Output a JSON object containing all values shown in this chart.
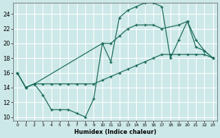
{
  "xlabel": "Humidex (Indice chaleur)",
  "bg_color": "#cde8e8",
  "grid_color": "#ffffff",
  "line_color": "#1a6b5a",
  "xlim": [
    -0.5,
    23.5
  ],
  "ylim": [
    9.5,
    25.5
  ],
  "xticks": [
    0,
    1,
    2,
    3,
    4,
    5,
    6,
    7,
    8,
    9,
    10,
    11,
    12,
    13,
    14,
    15,
    16,
    17,
    18,
    19,
    20,
    21,
    22,
    23
  ],
  "yticks": [
    10,
    12,
    14,
    16,
    18,
    20,
    22,
    24
  ],
  "line1_x": [
    0,
    1,
    2,
    3,
    4,
    5,
    6,
    7,
    8,
    9,
    10,
    11,
    12,
    13,
    14,
    15,
    16,
    17,
    18,
    19,
    20,
    21,
    22,
    23
  ],
  "line1_y": [
    16.0,
    14.0,
    14.5,
    13.0,
    11.0,
    11.0,
    11.0,
    10.5,
    10.0,
    12.5,
    20.0,
    17.5,
    23.5,
    24.5,
    25.0,
    25.5,
    25.5,
    25.0,
    18.0,
    20.5,
    23.0,
    19.5,
    19.0,
    18.0
  ],
  "line2_x": [
    0,
    1,
    2,
    10,
    11,
    12,
    13,
    14,
    15,
    16,
    17,
    19,
    20,
    21,
    22,
    23
  ],
  "line2_y": [
    16.0,
    14.0,
    14.5,
    20.0,
    20.0,
    21.0,
    22.0,
    22.5,
    22.5,
    22.5,
    22.0,
    22.5,
    23.0,
    20.5,
    19.0,
    18.0
  ],
  "line3_x": [
    0,
    1,
    2,
    3,
    4,
    5,
    6,
    7,
    8,
    9,
    10,
    11,
    12,
    13,
    14,
    15,
    16,
    17,
    18,
    19,
    20,
    21,
    22,
    23
  ],
  "line3_y": [
    16.0,
    14.0,
    14.5,
    14.5,
    14.5,
    14.5,
    14.5,
    14.5,
    14.5,
    14.5,
    15.0,
    15.5,
    16.0,
    16.5,
    17.0,
    17.5,
    18.0,
    18.5,
    18.5,
    18.5,
    18.5,
    18.5,
    18.5,
    18.0
  ]
}
